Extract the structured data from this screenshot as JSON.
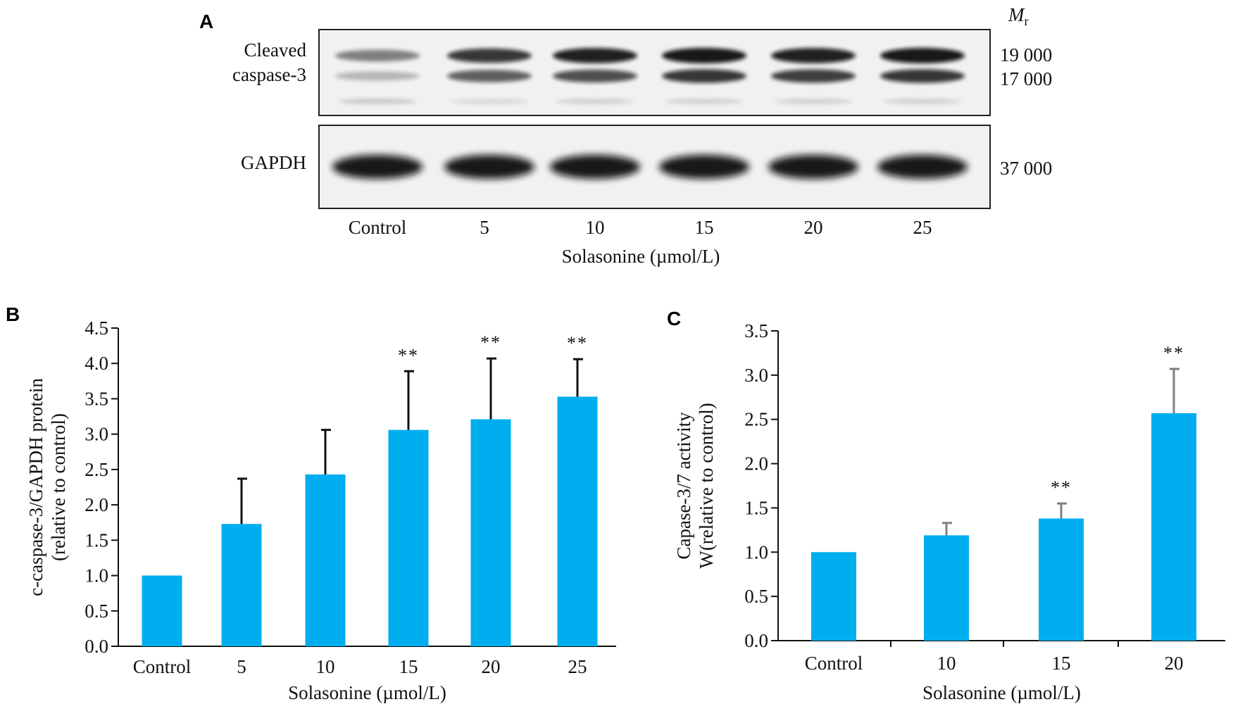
{
  "blot": {
    "panel_label": "A",
    "mr_label": "M",
    "mr_sub": "r",
    "row_labels": {
      "cleaved_line1": "Cleaved",
      "cleaved_line2": "caspase-3",
      "gapdh": "GAPDH"
    },
    "markers": [
      "19 000",
      "17 000",
      "37 000"
    ],
    "lanes": [
      "Control",
      "5",
      "10",
      "15",
      "20",
      "25"
    ],
    "xlabel": "Solasonine (µmol/L)"
  },
  "chart_data": [
    {
      "type": "bar",
      "panel_label": "B",
      "categories": [
        "Control",
        "5",
        "10",
        "15",
        "20",
        "25"
      ],
      "values": [
        1.0,
        1.73,
        2.43,
        3.06,
        3.21,
        3.53
      ],
      "errors": [
        0,
        0.64,
        0.63,
        0.83,
        0.86,
        0.53
      ],
      "significance": [
        "",
        "",
        "",
        "**",
        "**",
        "**"
      ],
      "ylabel_line1": "c-caspase-3/GAPDH protein",
      "ylabel_line2": "(relative to control)",
      "xlabel": "Solasonine (µmol/L)",
      "ylim": [
        0,
        4.5
      ],
      "yticks": [
        "0.0",
        "0.5",
        "1.0",
        "1.5",
        "2.0",
        "2.5",
        "3.0",
        "3.5",
        "4.0",
        "4.5"
      ],
      "bar_color": "#00AEEF",
      "error_color": "#111111"
    },
    {
      "type": "bar",
      "panel_label": "C",
      "categories": [
        "Control",
        "10",
        "15",
        "20"
      ],
      "values": [
        1.0,
        1.19,
        1.38,
        2.57
      ],
      "errors": [
        0,
        0.14,
        0.17,
        0.5
      ],
      "significance": [
        "",
        "",
        "**",
        "**"
      ],
      "ylabel_line1": "Capase-3/7 activity",
      "ylabel_line2": "W(relative to control)",
      "xlabel": "Solasonine (µmol/L)",
      "ylim": [
        0,
        3.5
      ],
      "yticks": [
        "0.0",
        "0.5",
        "1.0",
        "1.5",
        "2.0",
        "2.5",
        "3.0",
        "3.5"
      ],
      "bar_color": "#00AEEF",
      "error_color": "#808080"
    }
  ]
}
